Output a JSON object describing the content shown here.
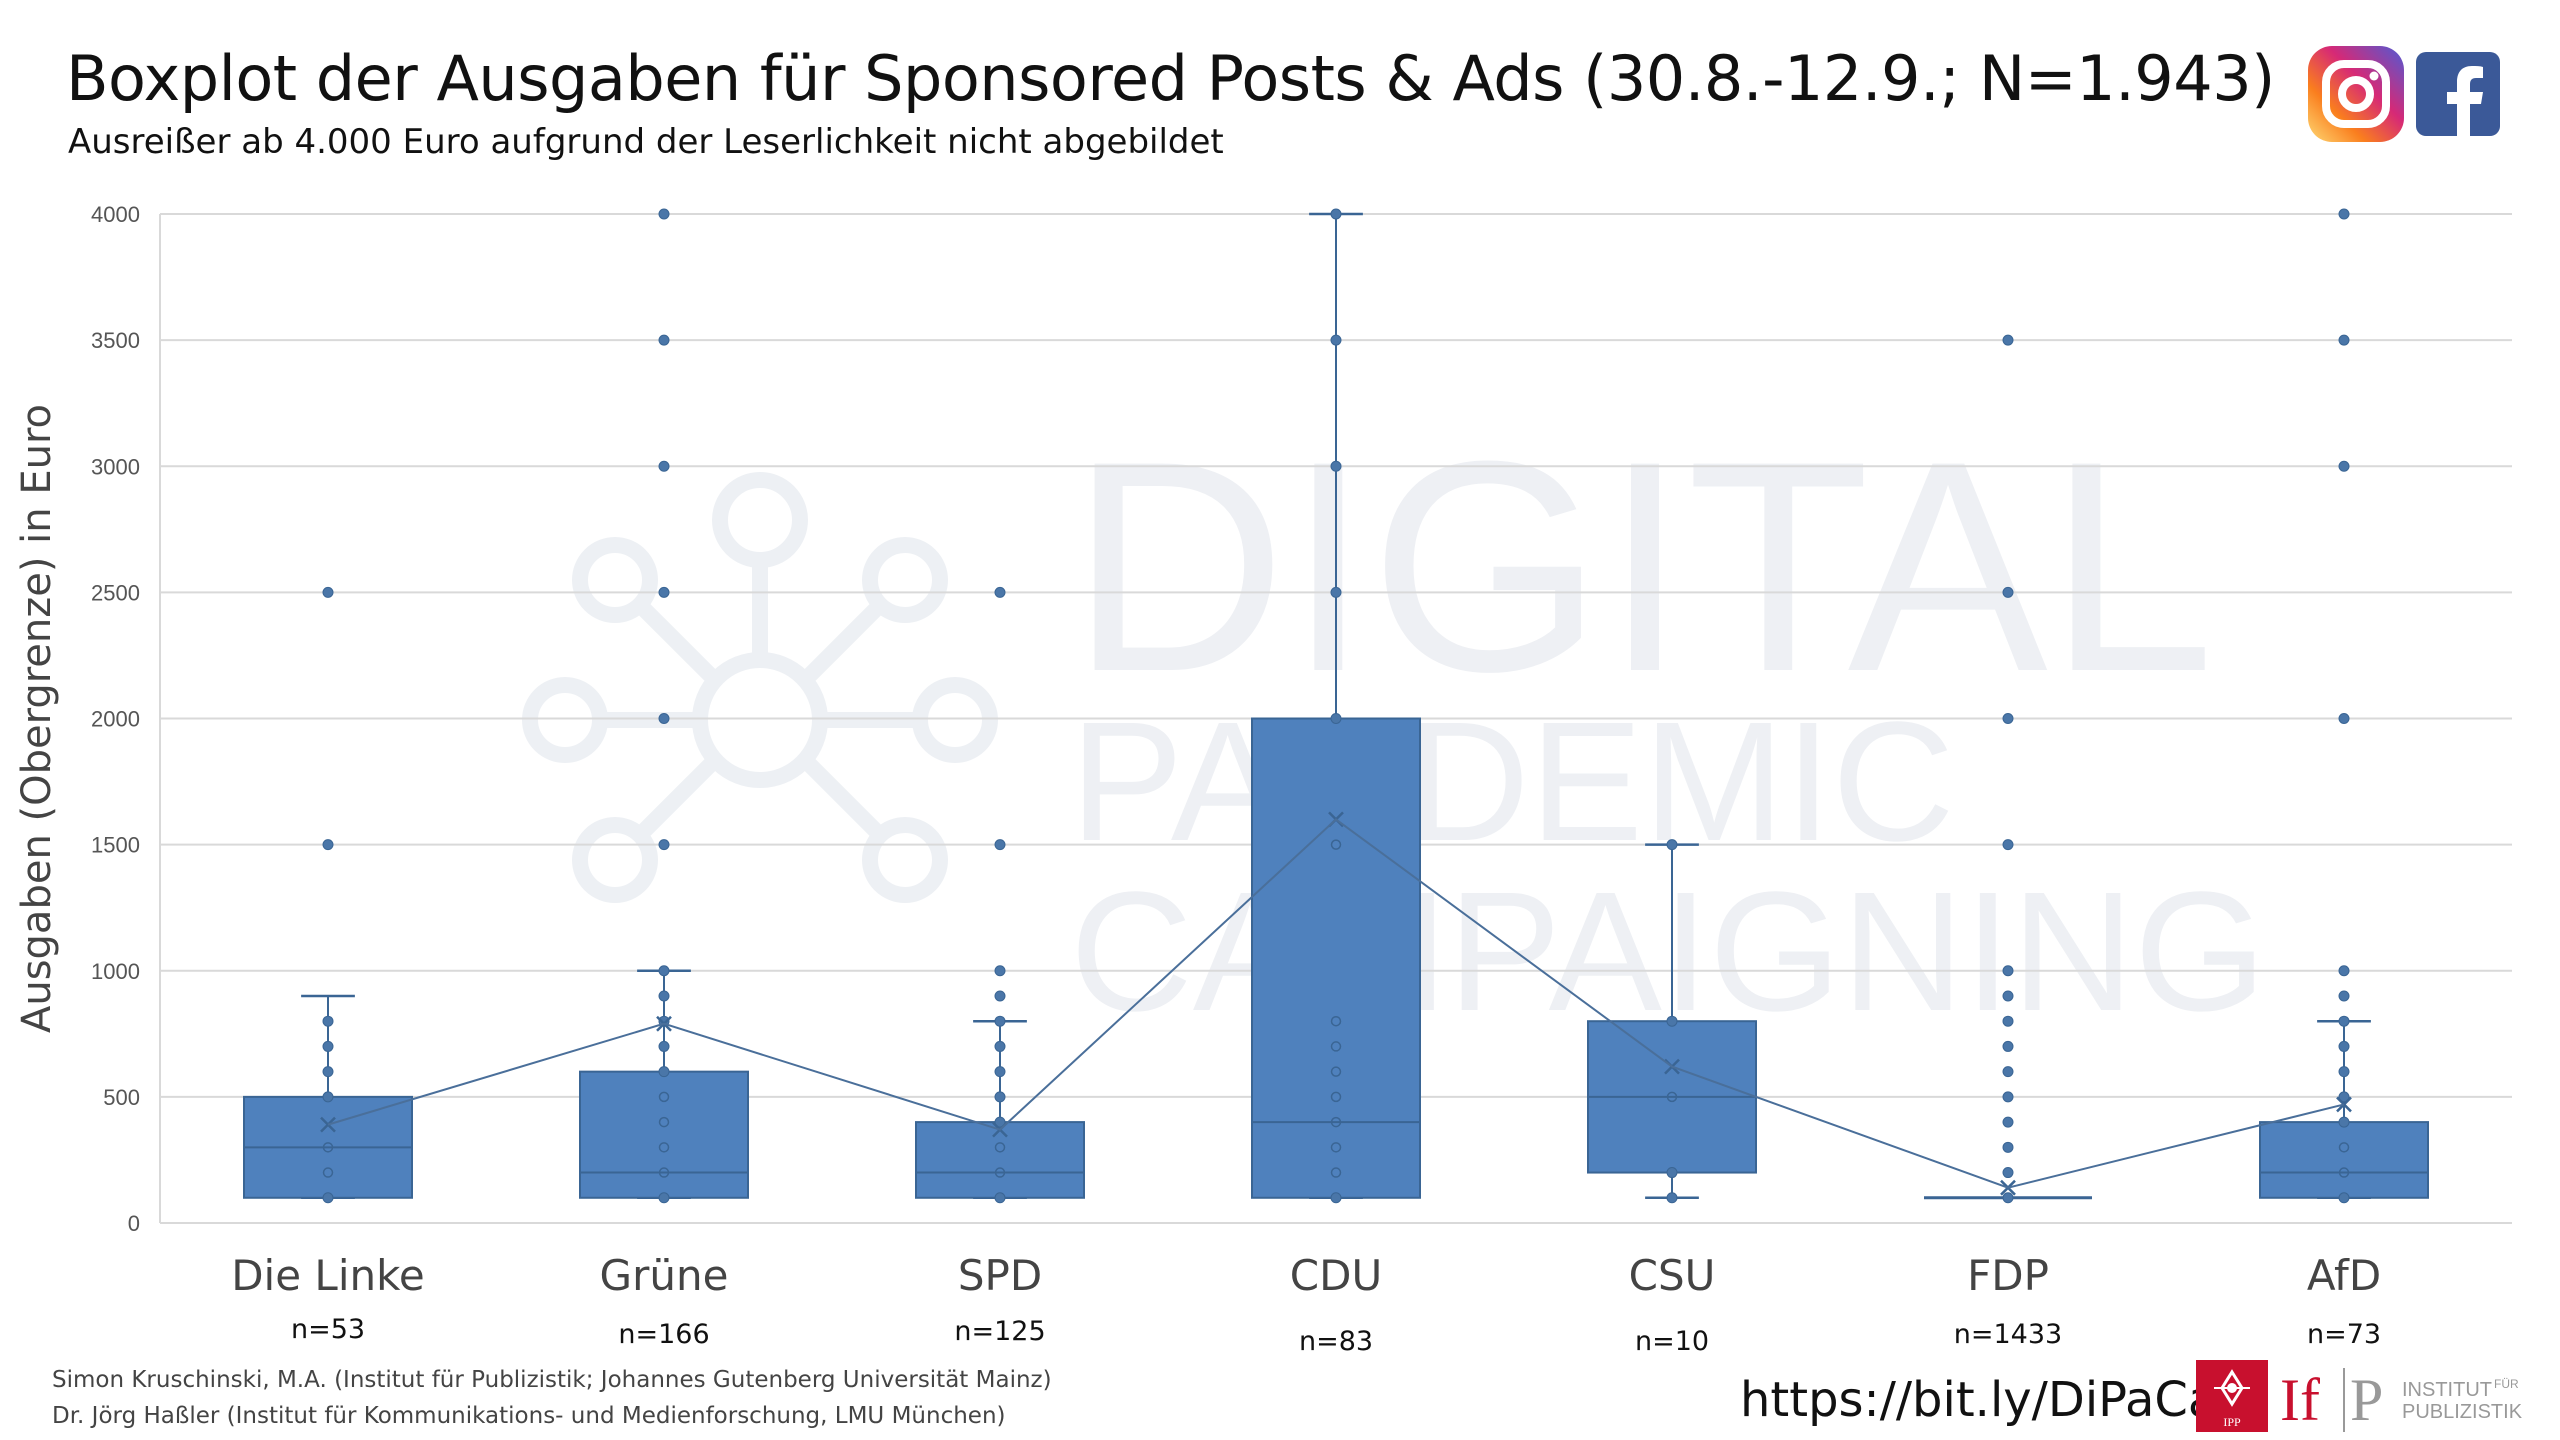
{
  "header": {
    "title": "Boxplot der Ausgaben für Sponsored Posts & Ads (30.8.-12.9.; N=1.943)",
    "subtitle": "Ausreißer ab 4.000 Euro aufgrund der Leserlichkeit nicht abgebildet"
  },
  "icons": {
    "instagram": "instagram-icon",
    "facebook": "facebook-icon"
  },
  "footer": {
    "credit_1": "Simon Kruschinski, M.A. (Institut für Publizistik; Johannes Gutenberg Universität Mainz)",
    "credit_2": "Dr. Jörg Haßler (Institut für Kommunikations- und Medienforschung, LMU München)",
    "link": "https://bit.ly/DiPaCa",
    "ipp_label": "IPP",
    "if_label": "If",
    "p_label": "P",
    "institut_line1": "INSTITUT",
    "institut_fuer": "FÜR",
    "institut_line2": "PUBLIZISTIK"
  },
  "watermark": {
    "line1": "DIGITAL",
    "line2": "PANDEMIC",
    "line3": "CAMPAIGNING"
  },
  "colors": {
    "box_fill": "#4f81bd",
    "box_stroke": "#3a6594",
    "grid": "#d9d9d9",
    "mean_line": "#4a6f9a"
  },
  "chart_data": {
    "type": "boxplot",
    "ylabel": "Ausgaben (Obergrenze) in Euro",
    "ylim": [
      0,
      4000
    ],
    "yticks": [
      "0",
      "500",
      "1000",
      "1500",
      "2000",
      "2500",
      "3000",
      "3500",
      "4000"
    ],
    "grid": true,
    "categories": [
      "Die Linke",
      "Grüne",
      "SPD",
      "CDU",
      "CSU",
      "FDP",
      "AfD"
    ],
    "counts": [
      "n=53",
      "n=166",
      "n=125",
      "n=83",
      "n=10",
      "n=1433",
      "n=73"
    ],
    "boxes": [
      {
        "q1": 100,
        "median": 300,
        "q3": 500,
        "whisker_low": 100,
        "whisker_high": 900,
        "mean": 390,
        "points": [
          100,
          200,
          300,
          500,
          600,
          700,
          800
        ],
        "outliers": [
          1500,
          2500
        ]
      },
      {
        "q1": 100,
        "median": 200,
        "q3": 600,
        "whisker_low": 100,
        "whisker_high": 1000,
        "mean": 790,
        "points": [
          100,
          200,
          300,
          400,
          500,
          600,
          700,
          800,
          900,
          1000
        ],
        "outliers": [
          1500,
          2000,
          2500,
          3000,
          3500,
          4000
        ]
      },
      {
        "q1": 100,
        "median": 200,
        "q3": 400,
        "whisker_low": 100,
        "whisker_high": 800,
        "mean": 370,
        "points": [
          100,
          200,
          300,
          400,
          500,
          600,
          700,
          800
        ],
        "outliers": [
          900,
          1000,
          1500,
          2500
        ]
      },
      {
        "q1": 100,
        "median": 400,
        "q3": 2000,
        "whisker_low": 100,
        "whisker_high": 4000,
        "mean": 1600,
        "points": [
          100,
          200,
          300,
          400,
          500,
          600,
          700,
          800,
          1500,
          2000,
          2500,
          3000,
          3500,
          4000
        ],
        "outliers": []
      },
      {
        "q1": 200,
        "median": 500,
        "q3": 800,
        "whisker_low": 100,
        "whisker_high": 1500,
        "mean": 620,
        "points": [
          100,
          200,
          500,
          800,
          1500
        ],
        "outliers": []
      },
      {
        "q1": 100,
        "median": 100,
        "q3": 100,
        "whisker_low": 100,
        "whisker_high": 100,
        "mean": 140,
        "points": [
          100
        ],
        "outliers": [
          200,
          300,
          400,
          500,
          600,
          700,
          800,
          900,
          1000,
          1500,
          2000,
          2500,
          3500
        ]
      },
      {
        "q1": 100,
        "median": 200,
        "q3": 400,
        "whisker_low": 100,
        "whisker_high": 800,
        "mean": 470,
        "points": [
          100,
          200,
          300,
          400,
          500,
          600,
          700,
          800
        ],
        "outliers": [
          900,
          1000,
          2000,
          3000,
          3500,
          4000
        ]
      }
    ]
  }
}
